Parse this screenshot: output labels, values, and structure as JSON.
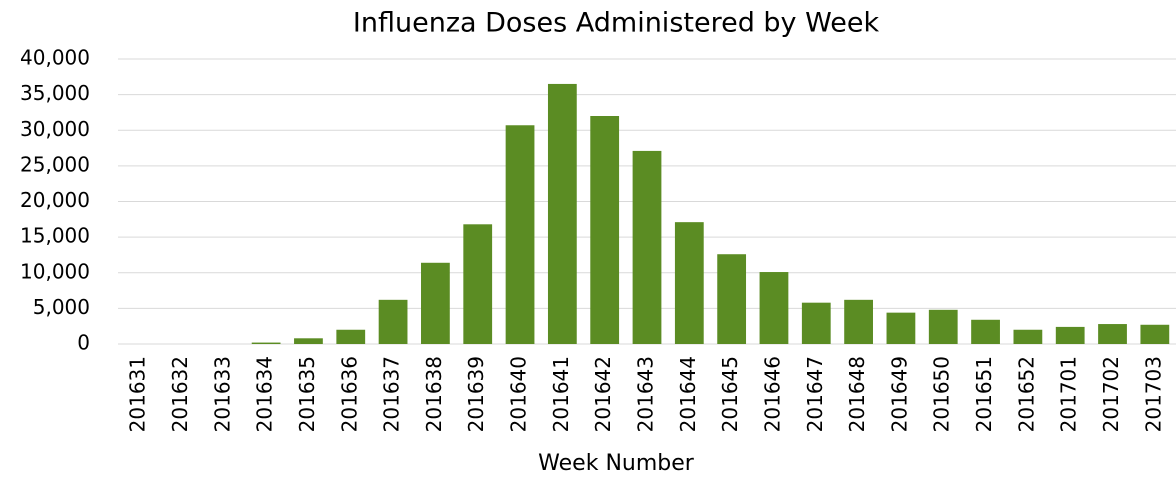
{
  "chart_data": {
    "type": "bar",
    "title": "Influenza Doses Administered by Week",
    "x_label": "Week Number",
    "categories": [
      "201631",
      "201632",
      "201633",
      "201634",
      "201635",
      "201636",
      "201637",
      "201638",
      "201639",
      "201640",
      "201641",
      "201642",
      "201643",
      "201644",
      "201645",
      "201646",
      "201647",
      "201648",
      "201649",
      "201650",
      "201651",
      "201652",
      "201701",
      "201702",
      "201703"
    ],
    "values": [
      0,
      0,
      0,
      200,
      800,
      2000,
      6200,
      11400,
      16800,
      30700,
      36500,
      32000,
      27100,
      17100,
      12600,
      10100,
      5800,
      6200,
      4400,
      4800,
      3400,
      2000,
      2400,
      2800,
      2700
    ],
    "color": "#5b8c23",
    "ylim": [
      0,
      40000
    ],
    "yticks": [
      0,
      {
        "value": 5000,
        "label": "5,000"
      },
      {
        "value": 10000,
        "label": "10,000"
      },
      {
        "value": 15000,
        "label": "15,000"
      },
      {
        "value": 20000,
        "label": "20,000"
      },
      {
        "value": 25000,
        "label": "25,000"
      },
      {
        "value": 30000,
        "label": "30,000"
      },
      {
        "value": 35000,
        "label": "35,000"
      },
      {
        "value": 40000,
        "label": "40,000"
      }
    ],
    "grid": true
  }
}
